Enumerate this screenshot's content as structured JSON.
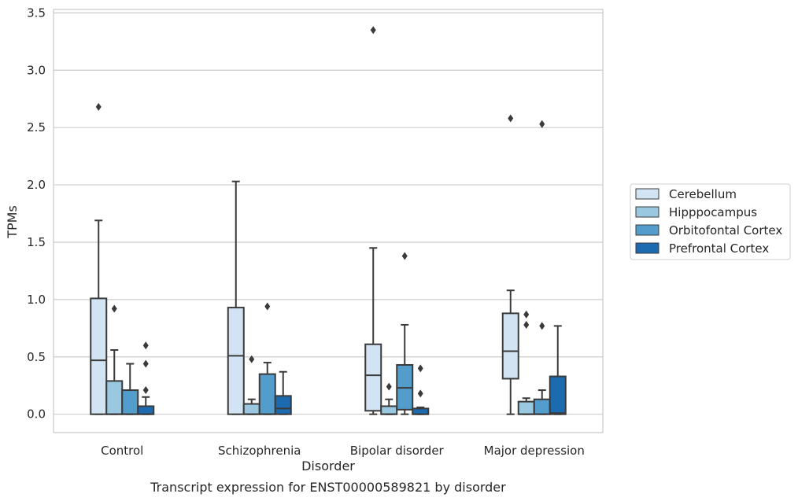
{
  "chart_data": {
    "type": "box",
    "caption": "Transcript expression for ENST00000589821 by disorder",
    "xlabel": "Disorder",
    "ylabel": "TPMs",
    "ylim": [
      -0.16,
      3.53
    ],
    "yticks": [
      0.0,
      0.5,
      1.0,
      1.5,
      2.0,
      2.5,
      3.0,
      3.5
    ],
    "ytick_labels": [
      "0.0",
      "0.5",
      "1.0",
      "1.5",
      "2.0",
      "2.5",
      "3.0",
      "3.5"
    ],
    "grid": "horizontal",
    "legend_position": "right",
    "categories": [
      "Control",
      "Schizophrenia",
      "Bipolar disorder",
      "Major depression"
    ],
    "series": [
      {
        "name": "Cerebellum",
        "color": "#d2e3f3",
        "boxes": [
          {
            "whislo": 0.0,
            "q1": 0.0,
            "med": 0.47,
            "q3": 1.01,
            "whishi": 1.69,
            "fliers": [
              2.68
            ]
          },
          {
            "whislo": 0.0,
            "q1": 0.0,
            "med": 0.51,
            "q3": 0.93,
            "whishi": 2.03,
            "fliers": []
          },
          {
            "whislo": 0.0,
            "q1": 0.03,
            "med": 0.34,
            "q3": 0.61,
            "whishi": 1.45,
            "fliers": [
              3.35
            ]
          },
          {
            "whislo": 0.0,
            "q1": 0.31,
            "med": 0.55,
            "q3": 0.88,
            "whishi": 1.08,
            "fliers": [
              2.58
            ]
          }
        ]
      },
      {
        "name": "Hipppocampus",
        "color": "#9ac8e0",
        "boxes": [
          {
            "whislo": 0.0,
            "q1": 0.0,
            "med": 0.0,
            "q3": 0.29,
            "whishi": 0.56,
            "fliers": [
              0.92
            ]
          },
          {
            "whislo": 0.0,
            "q1": 0.0,
            "med": 0.0,
            "q3": 0.09,
            "whishi": 0.13,
            "fliers": [
              0.48
            ]
          },
          {
            "whislo": 0.0,
            "q1": 0.0,
            "med": 0.0,
            "q3": 0.07,
            "whishi": 0.13,
            "fliers": [
              0.24
            ]
          },
          {
            "whislo": 0.0,
            "q1": 0.0,
            "med": 0.0,
            "q3": 0.11,
            "whishi": 0.14,
            "fliers": [
              0.78,
              0.87
            ]
          }
        ]
      },
      {
        "name": "Orbitofontal Cortex",
        "color": "#529dcc",
        "boxes": [
          {
            "whislo": 0.0,
            "q1": 0.0,
            "med": 0.0,
            "q3": 0.21,
            "whishi": 0.44,
            "fliers": []
          },
          {
            "whislo": 0.0,
            "q1": 0.0,
            "med": 0.0,
            "q3": 0.35,
            "whishi": 0.45,
            "fliers": [
              0.94
            ]
          },
          {
            "whislo": 0.0,
            "q1": 0.04,
            "med": 0.23,
            "q3": 0.43,
            "whishi": 0.78,
            "fliers": [
              1.38
            ]
          },
          {
            "whislo": 0.0,
            "q1": 0.0,
            "med": 0.0,
            "q3": 0.13,
            "whishi": 0.21,
            "fliers": [
              0.77,
              2.53
            ]
          }
        ]
      },
      {
        "name": "Prefrontal Cortex",
        "color": "#1c6aaf",
        "boxes": [
          {
            "whislo": 0.0,
            "q1": 0.0,
            "med": 0.0,
            "q3": 0.07,
            "whishi": 0.15,
            "fliers": [
              0.21,
              0.44,
              0.6
            ]
          },
          {
            "whislo": 0.0,
            "q1": 0.0,
            "med": 0.05,
            "q3": 0.16,
            "whishi": 0.37,
            "fliers": []
          },
          {
            "whislo": 0.0,
            "q1": 0.0,
            "med": 0.0,
            "q3": 0.05,
            "whishi": 0.06,
            "fliers": [
              0.18,
              0.4
            ]
          },
          {
            "whislo": 0.0,
            "q1": 0.0,
            "med": 0.01,
            "q3": 0.33,
            "whishi": 0.77,
            "fliers": []
          }
        ]
      }
    ]
  }
}
